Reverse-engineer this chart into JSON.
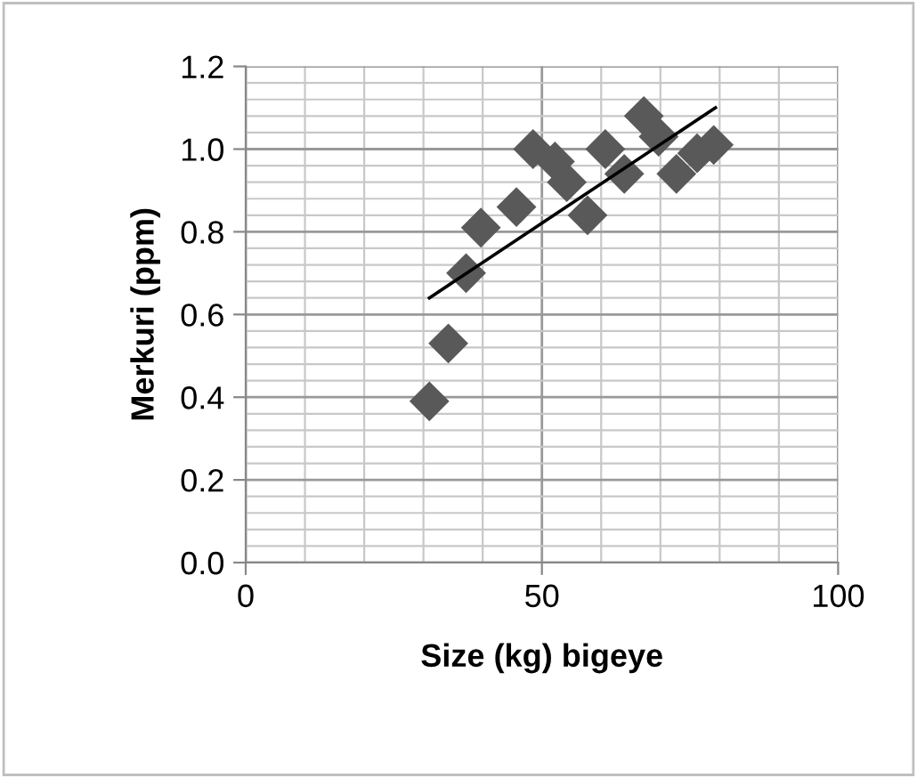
{
  "chart_data": {
    "type": "scatter",
    "xlabel": "Size (kg) bigeye",
    "ylabel": "Merkuri (ppm)",
    "xlim": [
      0,
      100
    ],
    "xticks": [
      0,
      50,
      100
    ],
    "ylim": [
      0,
      1.2
    ],
    "yticks": [
      {
        "value": 0,
        "label": "0.0"
      },
      {
        "value": 0.2,
        "label": "0.2"
      },
      {
        "value": 0.4,
        "label": "0.4"
      },
      {
        "value": 0.6,
        "label": "0.6"
      },
      {
        "value": 0.8,
        "label": "0.8"
      },
      {
        "value": 1.0,
        "label": "1.0"
      },
      {
        "value": 1.2,
        "label": "1.2"
      }
    ],
    "grid": true,
    "series": [
      {
        "marker": "diamond",
        "color": "#595959",
        "x": [
          31.0,
          34.2,
          37.2,
          39.7,
          45.7,
          48.5,
          52.2,
          54.2,
          57.7,
          60.7,
          63.9,
          67.2,
          69.7,
          72.7,
          76.2,
          79.0
        ],
        "values": [
          0.39,
          0.53,
          0.7,
          0.81,
          0.86,
          1.0,
          0.97,
          0.92,
          0.84,
          1.0,
          0.94,
          1.08,
          1.03,
          0.94,
          0.99,
          1.01
        ]
      },
      {
        "type": "line",
        "marker": "none",
        "color": "#000000",
        "x": [
          31.0,
          79.3
        ],
        "values": [
          0.64,
          1.1
        ]
      }
    ]
  }
}
